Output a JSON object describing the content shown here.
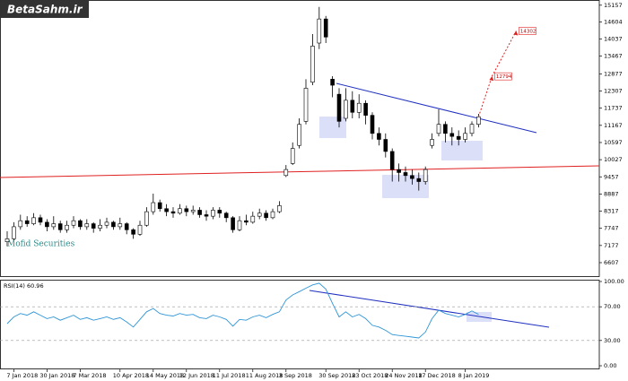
{
  "logo": "BetaSahm.ir",
  "chart_data": [
    {
      "type": "candlestick",
      "watermark": "Mofid Securities",
      "categories": [
        null,
        "7 Jan 2018",
        null,
        null,
        null,
        null,
        "30 Jan 2018",
        null,
        null,
        null,
        null,
        "7 Mar 2018",
        null,
        null,
        null,
        null,
        null,
        "10 Apr 2018",
        null,
        null,
        null,
        null,
        "14 May 2018",
        null,
        null,
        null,
        null,
        "12 Jun 2018",
        null,
        null,
        null,
        null,
        "11 Jul 2018",
        null,
        null,
        null,
        null,
        "11 Aug 2018",
        null,
        null,
        null,
        null,
        "3 Sep 2018",
        null,
        null,
        null,
        null,
        null,
        "30 Sep 2018",
        null,
        null,
        null,
        null,
        "23 Oct 2018",
        null,
        null,
        null,
        null,
        "24 Nov 2018",
        null,
        null,
        null,
        null,
        "17 Dec 2018",
        null,
        null,
        null,
        null,
        null,
        "8 Jan 2019",
        null,
        null
      ],
      "open": [
        7300,
        7400,
        7800,
        8000,
        7900,
        8100,
        7950,
        7800,
        7900,
        7700,
        7850,
        8000,
        7800,
        7900,
        7750,
        7850,
        7950,
        7800,
        7900,
        7700,
        7550,
        7850,
        8300,
        8600,
        8400,
        8300,
        8250,
        8400,
        8300,
        8350,
        8200,
        8150,
        8350,
        8250,
        8100,
        7700,
        8000,
        7950,
        8150,
        8250,
        8100,
        8300,
        9500,
        9900,
        10500,
        11300,
        12600,
        13900,
        14700,
        12700,
        12200,
        11400,
        12000,
        11600,
        11900,
        11500,
        10900,
        10700,
        10300,
        9700,
        9600,
        9500,
        9400,
        9300,
        10500,
        10900,
        11200,
        10900,
        10800,
        10700,
        10900,
        11200
      ],
      "high": [
        7650,
        7950,
        8200,
        8150,
        8250,
        8200,
        8050,
        8150,
        8000,
        8000,
        8150,
        8050,
        8050,
        7950,
        8050,
        8100,
        8000,
        8100,
        7950,
        7750,
        8000,
        8450,
        8900,
        8700,
        8550,
        8450,
        8550,
        8500,
        8500,
        8450,
        8350,
        8450,
        8450,
        8300,
        8150,
        8150,
        8200,
        8300,
        8400,
        8350,
        8400,
        8650,
        9850,
        10600,
        11400,
        12700,
        14200,
        15100,
        14800,
        12800,
        12400,
        12400,
        12300,
        12200,
        12000,
        11600,
        11100,
        10900,
        10400,
        9900,
        9800,
        9700,
        9600,
        9800,
        10900,
        11700,
        11300,
        11100,
        11000,
        11100,
        11300,
        11550
      ],
      "low": [
        7150,
        7350,
        7700,
        7800,
        7850,
        7850,
        7650,
        7700,
        7600,
        7600,
        7750,
        7700,
        7700,
        7600,
        7650,
        7750,
        7700,
        7700,
        7550,
        7400,
        7500,
        7800,
        8200,
        8300,
        8150,
        8100,
        8200,
        8150,
        8200,
        8100,
        8000,
        8050,
        8100,
        7950,
        7600,
        7650,
        7850,
        7900,
        8050,
        8000,
        8050,
        8250,
        9450,
        9850,
        10400,
        11200,
        12500,
        13700,
        13900,
        12100,
        11100,
        11300,
        11400,
        11400,
        11200,
        10700,
        10500,
        10100,
        9300,
        9300,
        9300,
        9200,
        9000,
        9200,
        10400,
        10800,
        10600,
        10500,
        10500,
        10600,
        10800,
        11100
      ],
      "close": [
        7400,
        7800,
        8000,
        7900,
        8100,
        7950,
        7800,
        7900,
        7700,
        7850,
        8000,
        7800,
        7900,
        7750,
        7850,
        7950,
        7800,
        7900,
        7700,
        7550,
        7850,
        8300,
        8600,
        8400,
        8300,
        8250,
        8400,
        8300,
        8350,
        8200,
        8150,
        8350,
        8250,
        8100,
        7700,
        8000,
        7950,
        8150,
        8250,
        8100,
        8300,
        8500,
        9700,
        10400,
        11200,
        12400,
        13800,
        14700,
        14100,
        12500,
        11300,
        12000,
        11600,
        11900,
        11500,
        10900,
        10700,
        10300,
        9700,
        9600,
        9500,
        9400,
        9300,
        9700,
        10700,
        11200,
        10900,
        10800,
        10700,
        10900,
        11200,
        11450
      ],
      "targets": [
        12794,
        14302
      ],
      "ylim": [
        6160,
        15300
      ],
      "yticks": [
        15157,
        14604,
        14037,
        13467,
        12877,
        12307,
        11737,
        11167,
        10597,
        10027,
        9457,
        8887,
        8317,
        7747,
        7177,
        6607
      ]
    },
    {
      "type": "line",
      "title": "RSI(14) 60.96",
      "color": "#2f95d6",
      "values": [
        50,
        58,
        62,
        60,
        64,
        60,
        56,
        58,
        54,
        57,
        60,
        55,
        57,
        54,
        56,
        58,
        55,
        57,
        52,
        46,
        55,
        64,
        68,
        62,
        60,
        59,
        62,
        60,
        61,
        57,
        56,
        60,
        58,
        55,
        47,
        55,
        54,
        58,
        60,
        57,
        61,
        64,
        78,
        84,
        88,
        92,
        96,
        98,
        91,
        74,
        58,
        64,
        58,
        61,
        56,
        48,
        46,
        42,
        37,
        36,
        35,
        34,
        33,
        40,
        56,
        66,
        62,
        60,
        58,
        61,
        65,
        60.96
      ],
      "ylim": [
        0,
        100
      ],
      "yticks": [
        {
          "value": 100,
          "label": "100.00"
        },
        {
          "value": 70,
          "label": "70.00"
        },
        {
          "value": 30,
          "label": "30.00"
        },
        {
          "value": 0,
          "label": "0.00"
        }
      ]
    }
  ]
}
